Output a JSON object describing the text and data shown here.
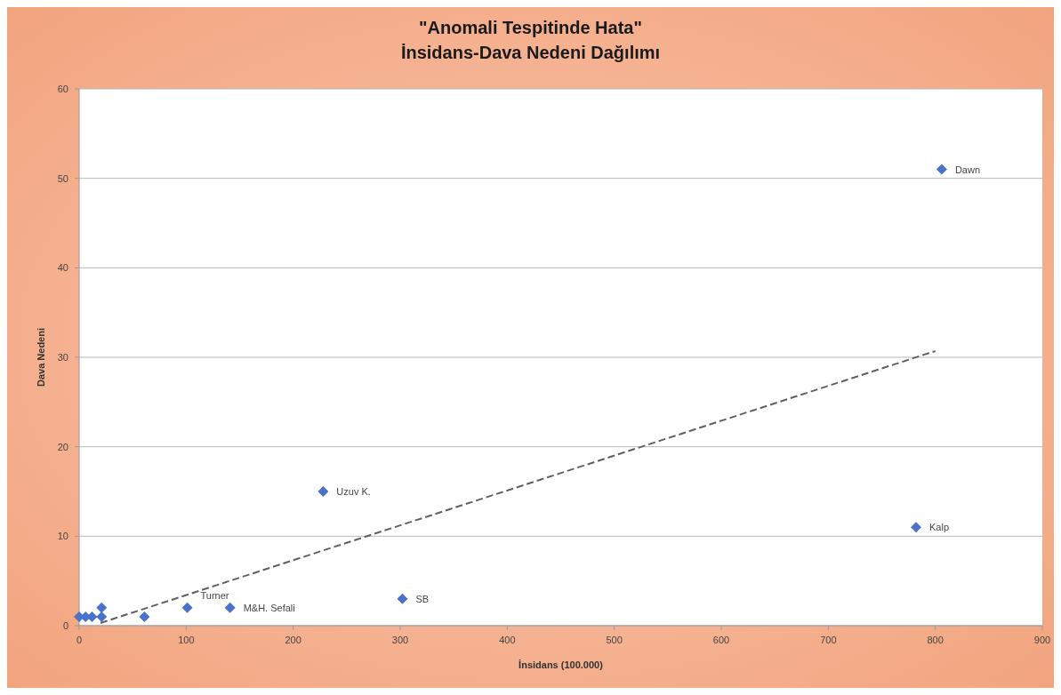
{
  "chart_data": {
    "type": "scatter",
    "title": "\"Anomali Tespitinde Hata\"",
    "subtitle": "İnsidans-Dava Nedeni Dağılımı",
    "xlabel": "İnsidans  (100.000)",
    "ylabel": "Dava Nedeni",
    "xlim": [
      0,
      900
    ],
    "xticks": [
      0,
      100,
      200,
      300,
      400,
      500,
      600,
      700,
      800,
      900
    ],
    "ylim": [
      0,
      60
    ],
    "yticks": [
      0,
      10,
      20,
      30,
      40,
      50,
      60
    ],
    "grid": "y",
    "marker": "diamond",
    "series": [
      {
        "color": "#4a72c8",
        "x": [
          0,
          6,
          12,
          21,
          21,
          61,
          101,
          141,
          228,
          302,
          782,
          806
        ],
        "values": [
          1,
          1,
          1,
          2,
          1,
          1,
          2,
          2,
          15,
          3,
          11,
          51
        ]
      },
      {
        "type": "line",
        "color": "#606060",
        "line_style": "dashed",
        "marker": "none",
        "x": [
          20,
          800
        ],
        "values": [
          0.3,
          30.7
        ]
      }
    ],
    "annotations": [
      {
        "text": "Dawn",
        "x": 806,
        "y": 51
      },
      {
        "text": "Uzuv K.",
        "x": 228,
        "y": 15
      },
      {
        "text": "Kalp",
        "x": 782,
        "y": 11
      },
      {
        "text": "SB",
        "x": 302,
        "y": 3
      },
      {
        "text": "Turner",
        "x": 101,
        "y": 2
      },
      {
        "text": "M&H. Sefali",
        "x": 141,
        "y": 2
      }
    ]
  }
}
